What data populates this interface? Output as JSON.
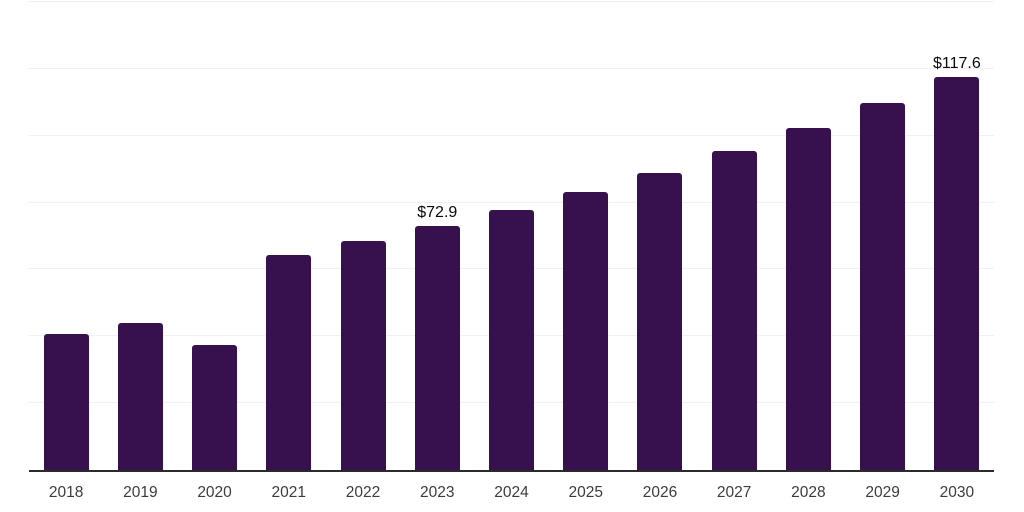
{
  "chart_data": {
    "type": "bar",
    "title": "",
    "xlabel": "",
    "ylabel": "",
    "categories": [
      "2018",
      "2019",
      "2020",
      "2021",
      "2022",
      "2023",
      "2024",
      "2025",
      "2026",
      "2027",
      "2028",
      "2029",
      "2030"
    ],
    "values": [
      40.8,
      43.9,
      37.3,
      64.3,
      68.4,
      72.9,
      77.9,
      83.2,
      89.0,
      95.4,
      102.3,
      109.9,
      117.6
    ],
    "data_labels": [
      {
        "category": "2023",
        "text": "$72.9"
      },
      {
        "category": "2030",
        "text": "$117.6"
      }
    ],
    "ylim": [
      0,
      140
    ],
    "gridline_step": 20,
    "grid": true,
    "legend": false,
    "y_axis_labels_shown": false,
    "colors": {
      "bar": "#36114E",
      "gridline": "#F1F1F1",
      "axis": "#2B2B2B",
      "tick_label": "#3C3C3C",
      "data_label": "#0A0A0A",
      "background": "#FFFFFF"
    }
  }
}
